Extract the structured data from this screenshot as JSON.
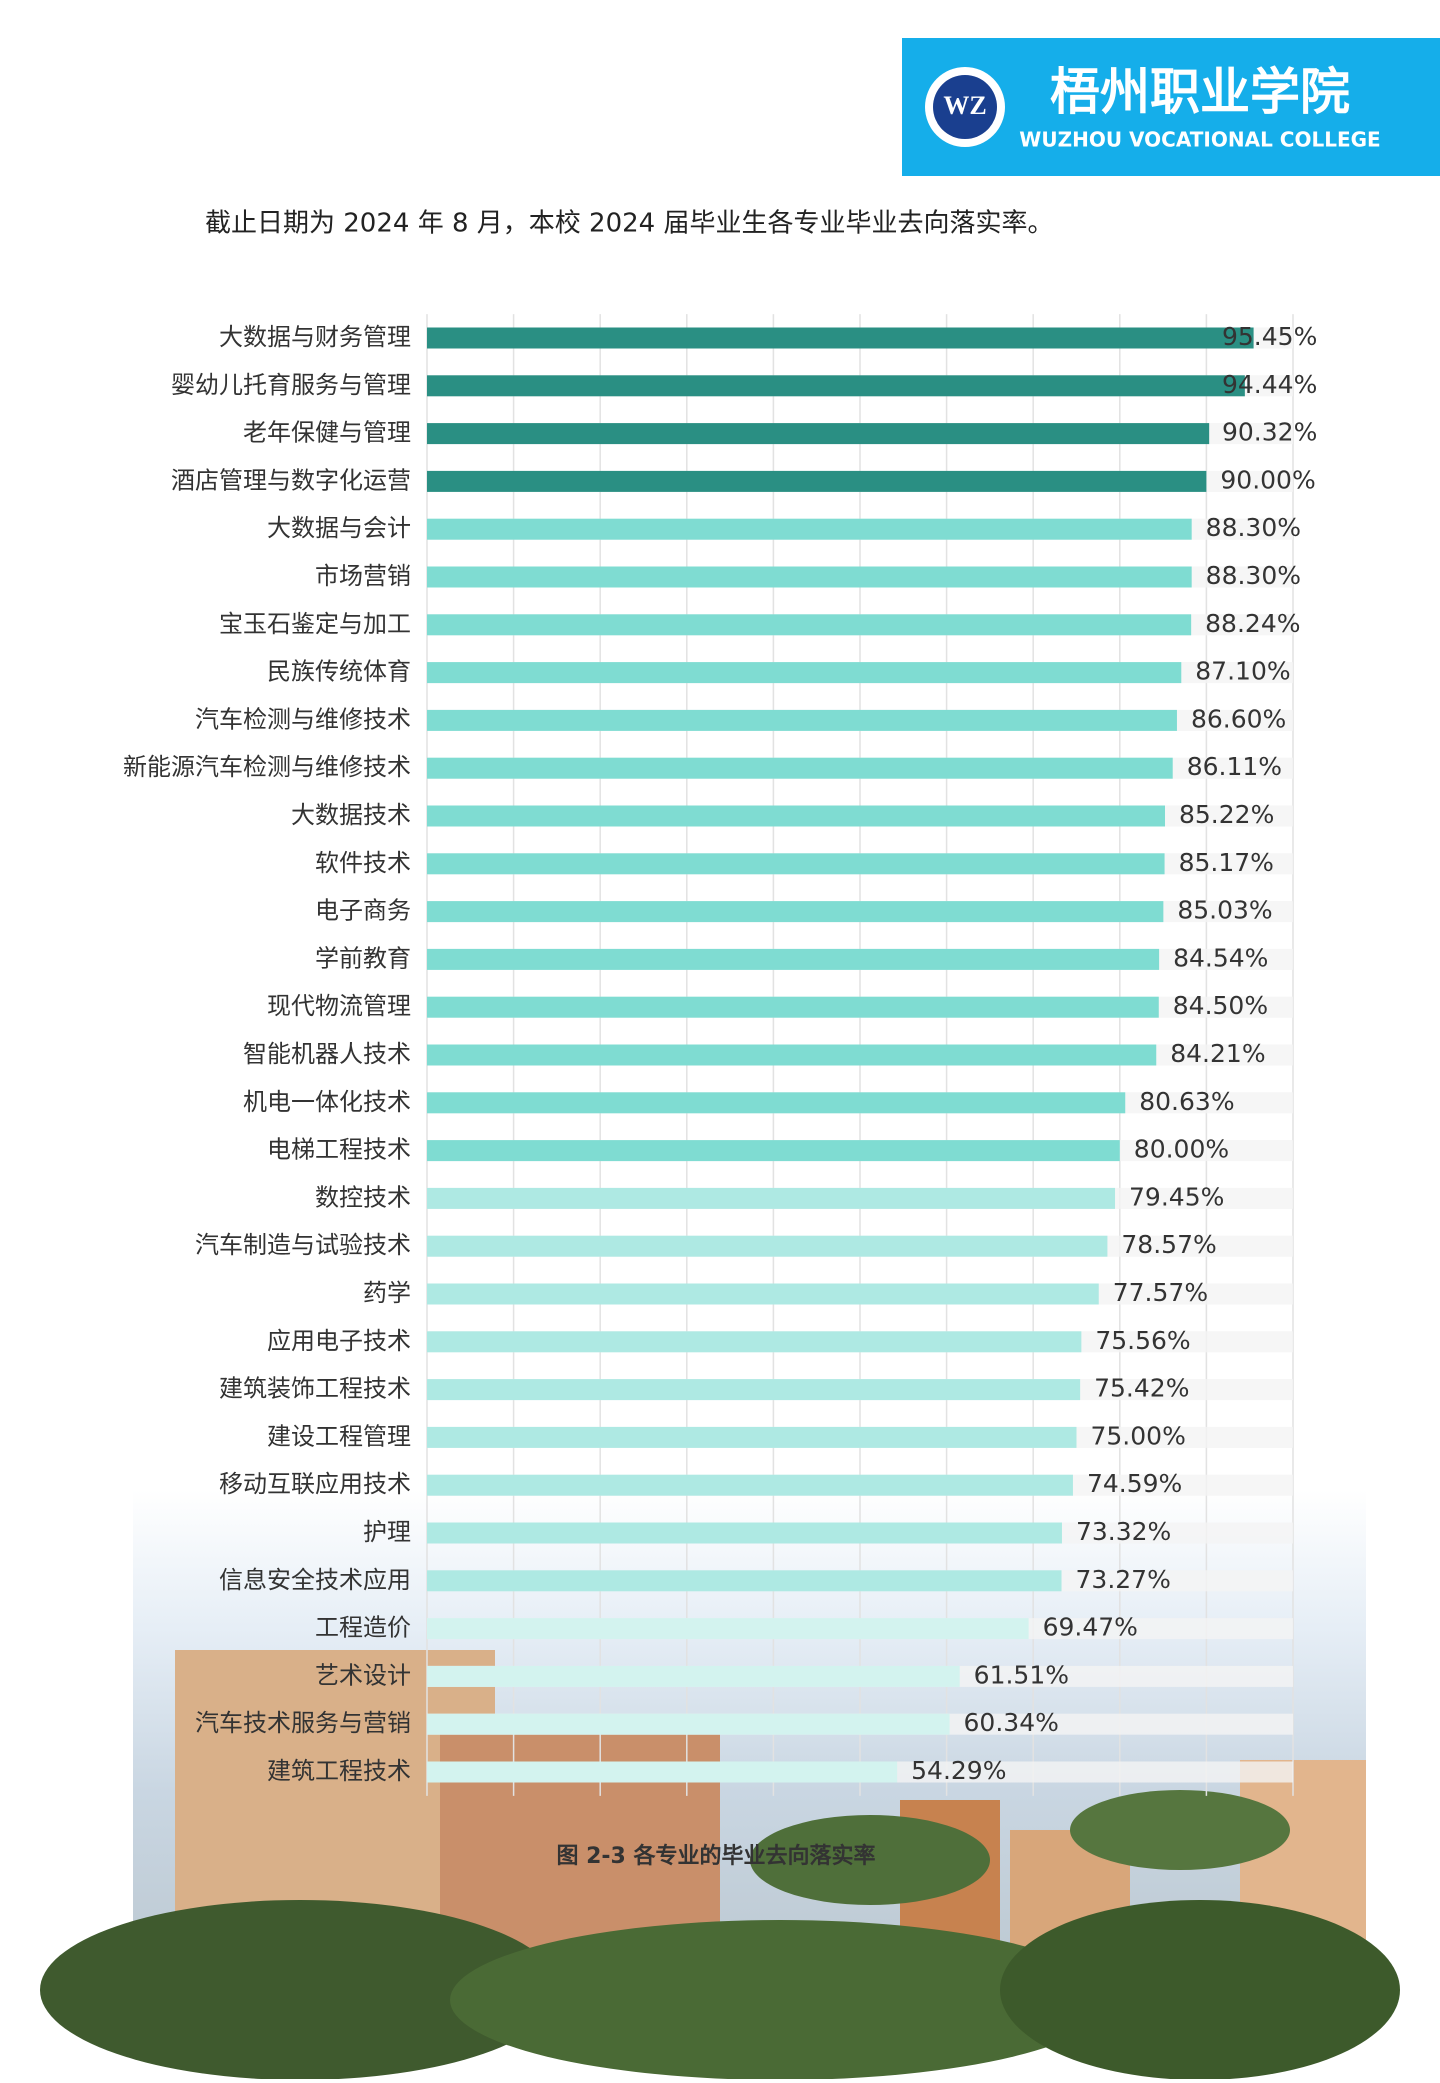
{
  "header": {
    "college_cn": "梧州职业学院",
    "college_en": "WUZHOU VOCATIONAL COLLEGE",
    "logo": "WZ"
  },
  "intro": "截止日期为 2024 年 8 月，本校 2024 届毕业生各专业毕业去向落实率。",
  "chart_data": {
    "type": "hbar",
    "title": "图 2-3 各专业的毕业去向落实率",
    "categories": [
      "大数据与财务管理",
      "婴幼儿托育服务与管理",
      "老年保健与管理",
      "酒店管理与数字化运营",
      "大数据与会计",
      "市场营销",
      "宝玉石鉴定与加工",
      "民族传统体育",
      "汽车检测与维修技术",
      "新能源汽车检测与维修技术",
      "大数据技术",
      "软件技术",
      "电子商务",
      "学前教育",
      "现代物流管理",
      "智能机器人技术",
      "机电一体化技术",
      "电梯工程技术",
      "数控技术",
      "汽车制造与试验技术",
      "药学",
      "应用电子技术",
      "建筑装饰工程技术",
      "建设工程管理",
      "移动互联应用技术",
      "护理",
      "信息安全技术应用",
      "工程造价",
      "艺术设计",
      "汽车技术服务与营销",
      "建筑工程技术"
    ],
    "values": [
      95.45,
      94.44,
      90.32,
      90.0,
      88.3,
      88.3,
      88.24,
      87.1,
      86.6,
      86.11,
      85.22,
      85.17,
      85.03,
      84.54,
      84.5,
      84.21,
      80.63,
      80.0,
      79.45,
      78.57,
      77.57,
      75.56,
      75.42,
      75.0,
      74.59,
      73.32,
      73.27,
      69.47,
      61.51,
      60.34,
      54.29
    ],
    "value_labels": [
      "95.45%",
      "94.44%",
      "90.32%",
      "90.00%",
      "88.30%",
      "88.30%",
      "88.24%",
      "87.10%",
      "86.60%",
      "86.11%",
      "85.22%",
      "85.17%",
      "85.03%",
      "84.54%",
      "84.50%",
      "84.21%",
      "80.63%",
      "80.00%",
      "79.45%",
      "78.57%",
      "77.57%",
      "75.56%",
      "75.42%",
      "75.00%",
      "74.59%",
      "73.32%",
      "73.27%",
      "69.47%",
      "61.51%",
      "60.34%",
      "54.29%"
    ],
    "colors": [
      "#2a8f83",
      "#2a8f83",
      "#2a8f83",
      "#2a8f83",
      "#7fdcd2",
      "#7fdcd2",
      "#7fdcd2",
      "#7fdcd2",
      "#7fdcd2",
      "#7fdcd2",
      "#7fdcd2",
      "#7fdcd2",
      "#7fdcd2",
      "#7fdcd2",
      "#7fdcd2",
      "#7fdcd2",
      "#7fdcd2",
      "#7fdcd2",
      "#aee9e3",
      "#aee9e3",
      "#aee9e3",
      "#aee9e3",
      "#aee9e3",
      "#aee9e3",
      "#aee9e3",
      "#aee9e3",
      "#aee9e3",
      "#d3f3ef",
      "#d3f3ef",
      "#d3f3ef",
      "#d3f3ef"
    ],
    "xlim": [
      0,
      100
    ],
    "xticks": [
      0,
      10,
      20,
      30,
      40,
      50,
      60,
      70,
      80,
      90,
      100
    ],
    "grid": true
  }
}
